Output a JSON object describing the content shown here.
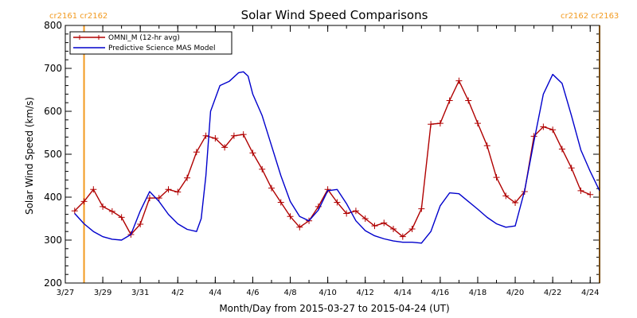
{
  "chart_data": {
    "type": "line",
    "title": "Solar Wind Speed Comparisons",
    "xlabel": "Month/Day from 2015-03-27 to 2015-04-24 (UT)",
    "ylabel": "Solar Wind Speed (km/s)",
    "xlim": [
      "2015-03-27",
      "2015-04-24T12:00"
    ],
    "ylim": [
      200,
      800
    ],
    "x_ticks": [
      "3/27",
      "3/29",
      "3/31",
      "4/2",
      "4/4",
      "4/6",
      "4/8",
      "4/10",
      "4/12",
      "4/14",
      "4/16",
      "4/18",
      "4/20",
      "4/22",
      "4/24"
    ],
    "y_ticks": [
      "200",
      "300",
      "400",
      "500",
      "600",
      "700",
      "800"
    ],
    "legend_position": "top-left",
    "colors": {
      "omni": "#b00000",
      "mas": "#0000cc",
      "cr": "#f29a1f"
    },
    "series": [
      {
        "name": "OMNI_M (12-hr avg)",
        "marker": "plus",
        "x": [
          "2015-03-27T12:00",
          "2015-03-28T00:00",
          "2015-03-28T12:00",
          "2015-03-29T00:00",
          "2015-03-29T12:00",
          "2015-03-30T00:00",
          "2015-03-30T12:00",
          "2015-03-31T00:00",
          "2015-03-31T12:00",
          "2015-04-01T00:00",
          "2015-04-01T12:00",
          "2015-04-02T00:00",
          "2015-04-02T12:00",
          "2015-04-03T00:00",
          "2015-04-03T12:00",
          "2015-04-04T00:00",
          "2015-04-04T12:00",
          "2015-04-05T00:00",
          "2015-04-05T12:00",
          "2015-04-06T00:00",
          "2015-04-06T12:00",
          "2015-04-07T00:00",
          "2015-04-07T12:00",
          "2015-04-08T00:00",
          "2015-04-08T12:00",
          "2015-04-09T00:00",
          "2015-04-09T12:00",
          "2015-04-10T00:00",
          "2015-04-10T12:00",
          "2015-04-11T00:00",
          "2015-04-11T12:00",
          "2015-04-12T00:00",
          "2015-04-12T12:00",
          "2015-04-13T00:00",
          "2015-04-13T12:00",
          "2015-04-14T00:00",
          "2015-04-14T12:00",
          "2015-04-15T00:00",
          "2015-04-15T12:00",
          "2015-04-16T00:00",
          "2015-04-16T12:00",
          "2015-04-17T00:00",
          "2015-04-17T12:00",
          "2015-04-18T00:00",
          "2015-04-18T12:00",
          "2015-04-19T00:00",
          "2015-04-19T12:00",
          "2015-04-20T00:00",
          "2015-04-20T12:00",
          "2015-04-21T00:00",
          "2015-04-21T12:00",
          "2015-04-22T00:00",
          "2015-04-22T12:00",
          "2015-04-23T00:00",
          "2015-04-23T12:00",
          "2015-04-24T00:00"
        ],
        "y": [
          368,
          390,
          418,
          378,
          367,
          353,
          313,
          337,
          398,
          398,
          418,
          412,
          445,
          505,
          543,
          537,
          516,
          543,
          546,
          503,
          465,
          421,
          388,
          355,
          330,
          345,
          378,
          418,
          388,
          362,
          368,
          350,
          333,
          340,
          326,
          308,
          326,
          373,
          570,
          572,
          625,
          671,
          625,
          572,
          520,
          446,
          403,
          387,
          413,
          542,
          564,
          557,
          512,
          468,
          415,
          406
        ]
      },
      {
        "name": "Predictive Science MAS Model",
        "marker": "none",
        "x": [
          "2015-03-27T12:00",
          "2015-03-28T00:00",
          "2015-03-28T12:00",
          "2015-03-29T00:00",
          "2015-03-29T12:00",
          "2015-03-30T00:00",
          "2015-03-30T12:00",
          "2015-03-31T00:00",
          "2015-03-31T12:00",
          "2015-04-01T00:00",
          "2015-04-01T12:00",
          "2015-04-02T00:00",
          "2015-04-02T12:00",
          "2015-04-03T00:00",
          "2015-04-03T06:00",
          "2015-04-03T12:00",
          "2015-04-03T18:00",
          "2015-04-04T06:00",
          "2015-04-04T18:00",
          "2015-04-05T06:00",
          "2015-04-05T12:00",
          "2015-04-05T18:00",
          "2015-04-06T00:00",
          "2015-04-06T12:00",
          "2015-04-07T00:00",
          "2015-04-07T12:00",
          "2015-04-08T00:00",
          "2015-04-08T12:00",
          "2015-04-09T00:00",
          "2015-04-09T12:00",
          "2015-04-10T00:00",
          "2015-04-10T12:00",
          "2015-04-11T00:00",
          "2015-04-11T12:00",
          "2015-04-12T00:00",
          "2015-04-12T12:00",
          "2015-04-13T00:00",
          "2015-04-13T12:00",
          "2015-04-14T00:00",
          "2015-04-14T12:00",
          "2015-04-15T00:00",
          "2015-04-15T12:00",
          "2015-04-16T00:00",
          "2015-04-16T12:00",
          "2015-04-17T00:00",
          "2015-04-17T12:00",
          "2015-04-18T00:00",
          "2015-04-18T12:00",
          "2015-04-19T00:00",
          "2015-04-19T12:00",
          "2015-04-20T00:00",
          "2015-04-20T12:00",
          "2015-04-21T00:00",
          "2015-04-21T12:00",
          "2015-04-22T00:00",
          "2015-04-22T12:00",
          "2015-04-23T00:00",
          "2015-04-23T12:00",
          "2015-04-24T00:00",
          "2015-04-24T12:00"
        ],
        "y": [
          362,
          338,
          320,
          308,
          302,
          300,
          313,
          368,
          413,
          390,
          360,
          338,
          325,
          320,
          350,
          450,
          600,
          660,
          670,
          690,
          692,
          682,
          640,
          590,
          520,
          450,
          390,
          355,
          345,
          370,
          415,
          418,
          385,
          345,
          322,
          310,
          303,
          298,
          295,
          295,
          293,
          320,
          380,
          410,
          408,
          390,
          372,
          353,
          338,
          330,
          333,
          415,
          530,
          640,
          686,
          665,
          590,
          510,
          460,
          415
        ]
      }
    ],
    "cr_markers": [
      {
        "x": "2015-03-28T00:00",
        "label": "cr2161 cr2162",
        "side": "left"
      },
      {
        "x": "2015-04-24T12:00",
        "label": "cr2162 cr2163",
        "side": "right"
      }
    ]
  }
}
